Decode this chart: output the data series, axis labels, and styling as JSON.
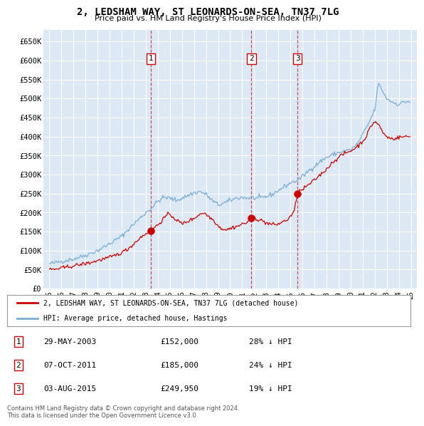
{
  "title": "2, LEDSHAM WAY, ST LEONARDS-ON-SEA, TN37 7LG",
  "subtitle": "Price paid vs. HM Land Registry's House Price Index (HPI)",
  "bg_color": "#dce9f5",
  "grid_color": "#ffffff",
  "ylim": [
    0,
    680000
  ],
  "yticks": [
    0,
    50000,
    100000,
    150000,
    200000,
    250000,
    300000,
    350000,
    400000,
    450000,
    500000,
    550000,
    600000,
    650000
  ],
  "hpi_color": "#7aaed6",
  "price_color": "#cc0000",
  "dashed_line_color": "#cc3333",
  "transactions": [
    {
      "num": 1,
      "date_x": 2003.41,
      "price": 152000
    },
    {
      "num": 2,
      "date_x": 2011.77,
      "price": 185000
    },
    {
      "num": 3,
      "date_x": 2015.59,
      "price": 249950
    }
  ],
  "legend_entries": [
    "2, LEDSHAM WAY, ST LEONARDS-ON-SEA, TN37 7LG (detached house)",
    "HPI: Average price, detached house, Hastings"
  ],
  "table_rows": [
    {
      "num": 1,
      "date": "29-MAY-2003",
      "price": "£152,000",
      "hpi": "28% ↓ HPI"
    },
    {
      "num": 2,
      "date": "07-OCT-2011",
      "price": "£185,000",
      "hpi": "24% ↓ HPI"
    },
    {
      "num": 3,
      "date": "03-AUG-2015",
      "price": "£249,950",
      "hpi": "19% ↓ HPI"
    }
  ],
  "footer": "Contains HM Land Registry data © Crown copyright and database right 2024.\nThis data is licensed under the Open Government Licence v3.0.",
  "xmin": 1994.5,
  "xmax": 2025.5
}
